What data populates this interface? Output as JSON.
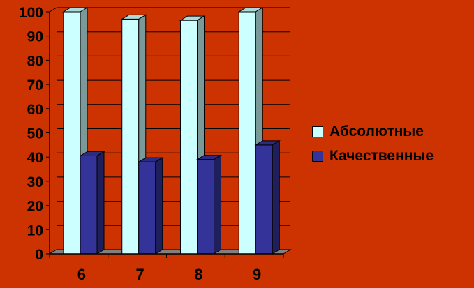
{
  "chart_data": {
    "type": "bar",
    "categories": [
      "6",
      "7",
      "8",
      "9"
    ],
    "series": [
      {
        "name": "Абсолютные",
        "values": [
          100,
          97,
          96.5,
          100
        ],
        "color": "#CCFFFF"
      },
      {
        "name": "Качественные",
        "values": [
          40.5,
          38,
          39,
          45
        ],
        "color": "#333399"
      }
    ],
    "yticks": [
      "0",
      "10",
      "20",
      "30",
      "40",
      "50",
      "60",
      "70",
      "80",
      "90",
      "100"
    ],
    "ylim": [
      0,
      100
    ],
    "grid": true,
    "legend_position": "right",
    "background": "#CC3300",
    "floor_color": "#808080"
  }
}
